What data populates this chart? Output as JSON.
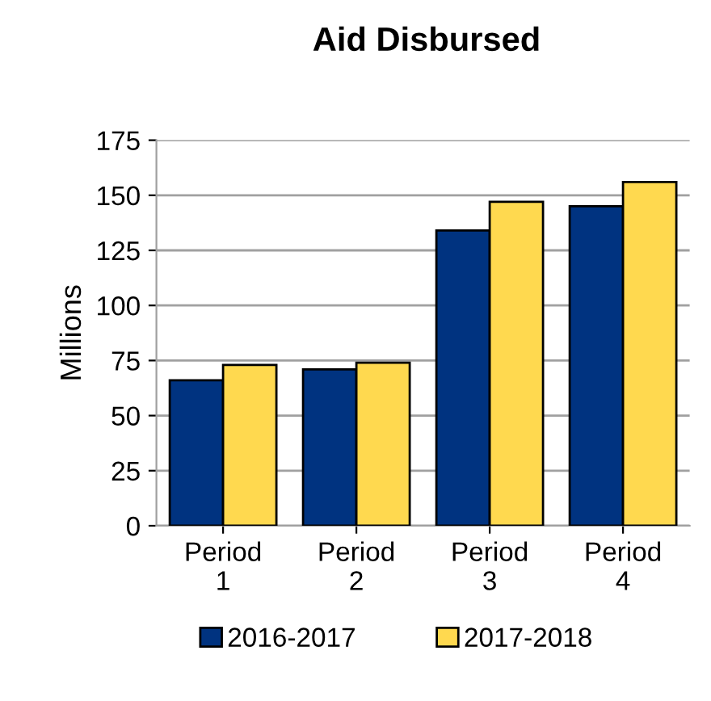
{
  "chart_data": {
    "type": "bar",
    "title": "Aid Disbursed",
    "ylabel": "Millions",
    "categories": [
      "Period\n1",
      "Period\n2",
      "Period\n3",
      "Period\n4"
    ],
    "series": [
      {
        "name": "2016-2017",
        "color": "#003380",
        "values": [
          66,
          71,
          134,
          145
        ]
      },
      {
        "name": "2017-2018",
        "color": "#ffd94f",
        "values": [
          73,
          74,
          147,
          156
        ]
      }
    ],
    "ylim": [
      0,
      175
    ],
    "yticks": [
      0,
      25,
      50,
      75,
      100,
      125,
      150,
      175
    ],
    "grid": "y",
    "legend": "bottom"
  }
}
